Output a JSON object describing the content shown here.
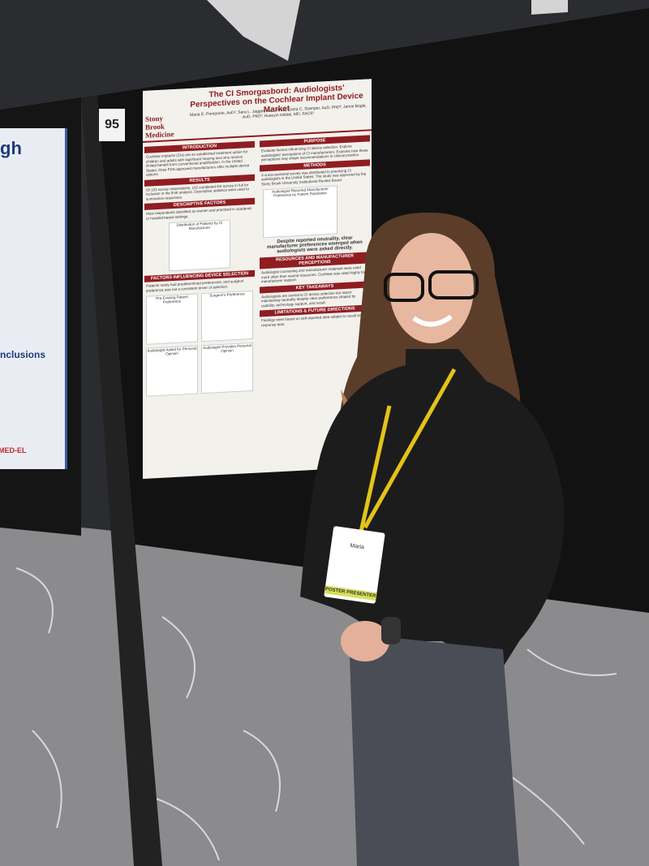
{
  "board_number": "95",
  "poster": {
    "logo": "Stony Brook Medicine",
    "title": "The CI Smorgasbord: Audiologists' Perspectives on the Cochlear Implant Device Market",
    "authors": "Maria E. Pomponio, AuD¹; Sara L. Jagger, AuD, PhD²; Greta C. Stamper, AuD, PhD³; Jamie Bogle, AuD, PhD³; Huseyin Isildak, MD, FACS¹",
    "left_sections": [
      {
        "heading": "INTRODUCTION",
        "text": "Cochlear implants (CIs) are an established treatment option for children and adults with significant hearing loss who receive limited benefit from conventional amplification. In the United States, three FDA-approved manufacturers offer multiple device options."
      },
      {
        "heading": "RESULTS",
        "text": "Of 153 survey respondents, 102 completed the survey in full for inclusion in the final analysis. Descriptive statistics were used to summarize responses."
      },
      {
        "heading": "DESCRIPTIVE FACTORS",
        "text": "Most respondents identified as women and practiced in academic or hospital-based settings."
      },
      {
        "heading": "FACTORS INFLUENCING DEVICE SELECTION",
        "text": "Patients rarely had predetermined preferences, and surgeon preference was not a consistent driver of selection."
      }
    ],
    "right_sections": [
      {
        "heading": "PURPOSE",
        "text": "Evaluate factors influencing CI device selection. Explore audiologists' perceptions of CI manufacturers. Examine how these perceptions may shape recommendations in clinical practice."
      },
      {
        "heading": "METHODS",
        "text": "A cross-sectional survey was distributed to practicing CI audiologists in the United States. The study was approved by the Stony Brook University Institutional Review Board."
      },
      {
        "heading": "RESOURCES AND MANUFACTURER PERCEPTIONS",
        "text": "Audiologist counseling and manufacturer materials were used more often than neutral resources. Cochlear was rated highly for manufacturer support."
      },
      {
        "heading": "KEY TAKEAWAYS",
        "text": "Audiologists are central to CI device selection but report maintaining neutrality despite clear preferences shaped by usability, technology support, and recall."
      },
      {
        "heading": "LIMITATIONS & FUTURE DIRECTIONS",
        "text": "Findings were based on self-reported data subject to recall and response bias."
      }
    ],
    "chart_titles": [
      "Audiologist-Reported Manufacturer Preference by Patient Population",
      "Distribution of Patients by CI Manufacturer",
      "Pre-Existing Patient Preference",
      "Surgeon's Preference",
      "Audiologist Asked for Personal Opinion",
      "Audiologist Provides Personal Opinion"
    ],
    "callout": "Despite reported neutrality, clear manufacturer preferences emerged when audiologists were asked directly."
  },
  "neighbor_poster": {
    "heading": "gh",
    "subheading": "nclusions",
    "logo": "MED-EL"
  },
  "badge": {
    "name": "Maria",
    "ribbon": "POSTER PRESENTER"
  }
}
